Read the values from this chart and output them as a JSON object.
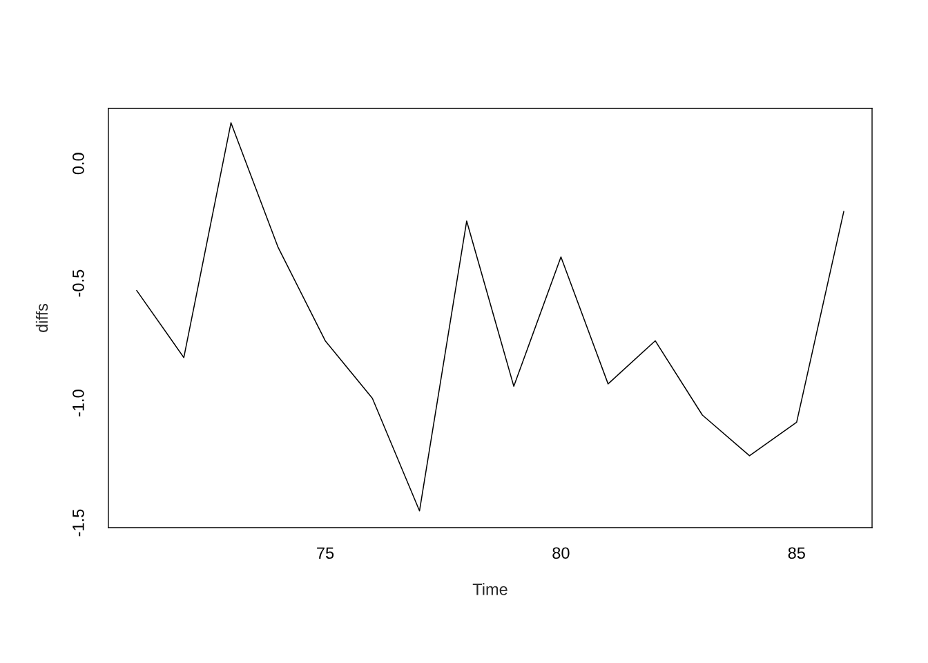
{
  "chart_data": {
    "type": "line",
    "xlabel": "Time",
    "ylabel": "diffs",
    "x": [
      71,
      72,
      73,
      74,
      75,
      76,
      77,
      78,
      79,
      80,
      81,
      82,
      83,
      84,
      85,
      86
    ],
    "series": [
      {
        "color": "#000000",
        "values": [
          -0.53,
          -0.81,
          0.17,
          -0.35,
          -0.74,
          -0.98,
          -1.45,
          -0.24,
          -0.93,
          -0.39,
          -0.92,
          -0.74,
          -1.05,
          -1.22,
          -1.08,
          -0.2
        ]
      }
    ],
    "xlim": [
      70.4,
      86.6
    ],
    "ylim": [
      -1.52,
      0.23
    ],
    "xticks": [
      75,
      80,
      85
    ],
    "yticks": [
      {
        "value": 0,
        "label": "0.0"
      },
      {
        "value": -0.5,
        "label": "-0.5"
      },
      {
        "value": -1,
        "label": "-1.0"
      },
      {
        "value": -1.5,
        "label": "-1.5"
      }
    ],
    "grid": false,
    "marker": "none",
    "line_style": "solid"
  }
}
